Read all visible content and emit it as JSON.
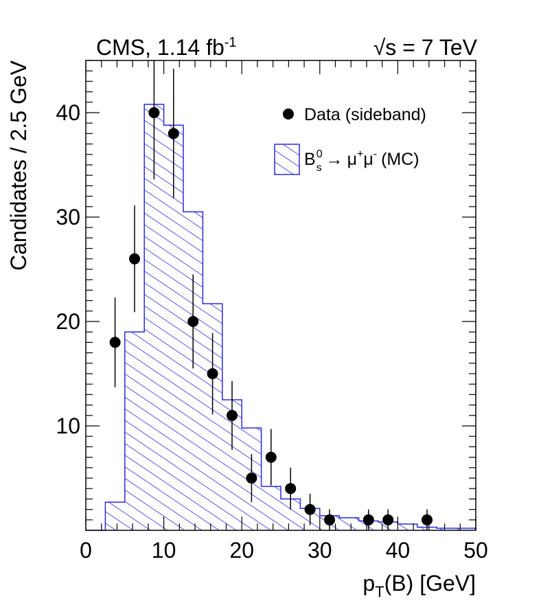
{
  "chart_data": {
    "type": "histogram",
    "title_left": "CMS, 1.14 fb",
    "title_left_sup": "-1",
    "title_right_sqrt": "√",
    "title_right": "s = 7 TeV",
    "xlabel_main": "p",
    "xlabel_sub": "T",
    "xlabel_rest": "(B) [GeV]",
    "ylabel": "Candidates / 2.5 GeV",
    "xlim": [
      0,
      50
    ],
    "ylim": [
      0,
      45
    ],
    "x_ticks": [
      0,
      10,
      20,
      30,
      40,
      50
    ],
    "x_tick_labels": [
      "0",
      "10",
      "20",
      "30",
      "40",
      "50"
    ],
    "y_ticks": [
      10,
      20,
      30,
      40
    ],
    "y_tick_labels": [
      "10",
      "20",
      "30",
      "40"
    ],
    "legend": {
      "placement": "top-right",
      "data_label": "Data (sideband)",
      "mc_label_B": "B",
      "mc_label_sup": "0",
      "mc_label_sub": "s",
      "mc_label_arrow": "→",
      "mc_label_mu1": "μ",
      "mc_label_mu1_sup": "+",
      "mc_label_mu2": "μ",
      "mc_label_mu2_sup": "-",
      "mc_label_tail": "(MC)"
    },
    "series": [
      {
        "name": "Data (sideband)",
        "kind": "points",
        "x": [
          3.75,
          6.25,
          8.75,
          11.25,
          13.75,
          16.25,
          18.75,
          21.25,
          23.75,
          26.25,
          28.75,
          31.25,
          36.25,
          38.75,
          43.75
        ],
        "y": [
          18,
          26,
          40,
          38,
          20,
          15,
          11,
          5,
          7,
          4,
          2,
          1,
          1,
          1,
          1
        ],
        "err": [
          4.3,
          5.1,
          6.4,
          6.2,
          4.5,
          3.9,
          3.3,
          2.3,
          2.7,
          2.0,
          1.5,
          1.0,
          1.0,
          1.0,
          1.0
        ]
      },
      {
        "name": "Bs0 → μ+μ- (MC)",
        "kind": "histogram",
        "bin_edges": [
          0,
          2.5,
          5,
          7.5,
          10,
          12.5,
          15,
          17.5,
          20,
          22.5,
          25,
          27.5,
          30,
          32.5,
          35,
          37.5,
          40,
          42.5,
          45,
          47.5,
          50
        ],
        "values": [
          0,
          2.7,
          19.0,
          40.8,
          38.8,
          30.5,
          21.7,
          12.5,
          9.8,
          4.2,
          3.0,
          2.1,
          1.4,
          1.2,
          0.9,
          0.8,
          0.6,
          0.3,
          0.2,
          0.2
        ],
        "color": "#2a2ae0"
      }
    ]
  }
}
